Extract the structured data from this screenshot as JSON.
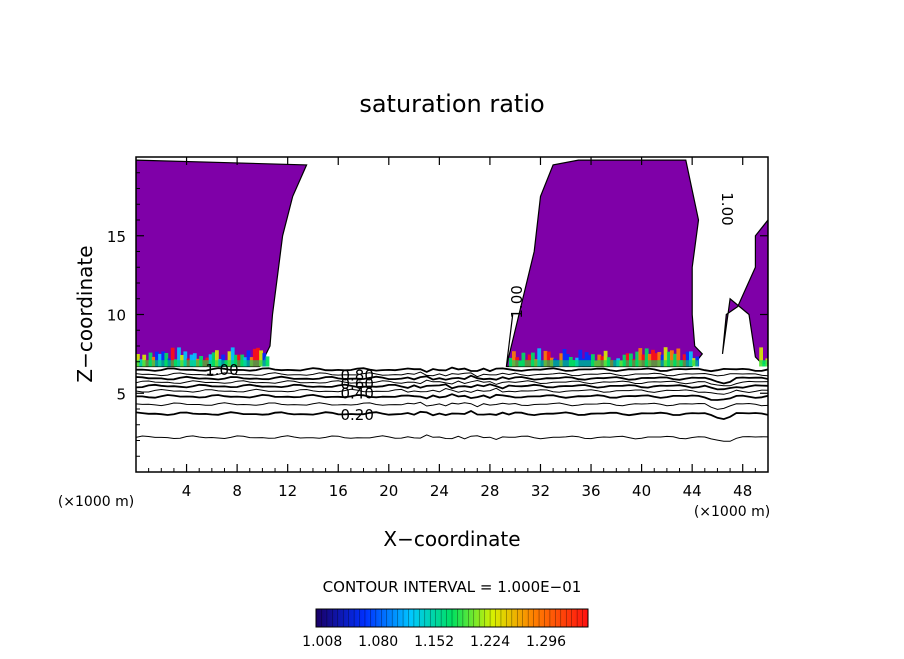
{
  "chart_data": {
    "type": "contour",
    "title": "saturation ratio",
    "xlabel": "X−coordinate",
    "ylabel": "Z−coordinate",
    "x_unit": "(×1000 m)",
    "y_unit": "(×1000 m)",
    "xlim": [
      0,
      50
    ],
    "ylim": [
      0,
      20
    ],
    "x_ticks": [
      4,
      8,
      12,
      16,
      20,
      24,
      28,
      32,
      36,
      40,
      44,
      48
    ],
    "y_ticks": [
      5,
      10,
      15
    ],
    "contour_interval_label": "CONTOUR INTERVAL = 1.000E−01",
    "colorbar_ticks": [
      "1.008",
      "1.080",
      "1.152",
      "1.224",
      "1.296"
    ],
    "colorbar_range": [
      1.0,
      1.35
    ],
    "saturated_fill_color": "#7f00a8",
    "contour_lines": [
      {
        "level": 0.1,
        "z": 2.2,
        "label": ""
      },
      {
        "level": 0.2,
        "z": 3.7,
        "label": "0.20"
      },
      {
        "level": 0.3,
        "z": 4.3,
        "label": ""
      },
      {
        "level": 0.4,
        "z": 4.8,
        "label": "0.40"
      },
      {
        "level": 0.5,
        "z": 5.15,
        "label": ""
      },
      {
        "level": 0.6,
        "z": 5.45,
        "label": "0.60"
      },
      {
        "level": 0.7,
        "z": 5.7,
        "label": ""
      },
      {
        "level": 0.8,
        "z": 5.95,
        "label": "0.80"
      },
      {
        "level": 0.9,
        "z": 6.2,
        "label": ""
      },
      {
        "level": 1.0,
        "z": 6.5,
        "label": "1.00"
      }
    ],
    "saturated_regions": [
      {
        "x": [
          0,
          0,
          13.5,
          12.4,
          11.6,
          11.2,
          10.8,
          10.6,
          9.8,
          0
        ],
        "z": [
          6.7,
          19.8,
          19.5,
          17.5,
          15.0,
          12.5,
          10.0,
          8.0,
          6.7,
          6.7
        ]
      },
      {
        "x": [
          29.3,
          31.5,
          32.0,
          33.0,
          35.0,
          43.5,
          44.5,
          44.0,
          44.0,
          44.2,
          44.8,
          44.0,
          29.3,
          29.8,
          29.3
        ],
        "z": [
          6.7,
          14.0,
          17.5,
          19.5,
          19.8,
          19.8,
          16.0,
          13.0,
          10.0,
          8.0,
          7.5,
          6.7,
          6.7,
          10.0,
          6.7
        ]
      },
      {
        "x": [
          46.4,
          46.7,
          47.6,
          49.0,
          49.0,
          50.0,
          50.0,
          49.5,
          49.0,
          48.5,
          47.0,
          46.4
        ],
        "z": [
          7.5,
          10.0,
          10.5,
          13.0,
          15.0,
          16.0,
          6.9,
          6.9,
          7.3,
          10.0,
          11.0,
          7.5
        ]
      }
    ],
    "line_labels": [
      {
        "text": "1.00",
        "x": 6.8,
        "z": 6.45,
        "rotate": 0
      },
      {
        "text": "0.80",
        "x": 17.5,
        "z": 6.1,
        "rotate": 0
      },
      {
        "text": "0.60",
        "x": 17.5,
        "z": 5.55,
        "rotate": 0
      },
      {
        "text": "0.40",
        "x": 17.5,
        "z": 4.95,
        "rotate": 0
      },
      {
        "text": "0.20",
        "x": 17.5,
        "z": 3.6,
        "rotate": 0
      },
      {
        "text": "1.00",
        "x": 30.2,
        "z": 10.8,
        "rotate": -90
      },
      {
        "text": "1.00",
        "x": 46.7,
        "z": 16.7,
        "rotate": 90
      }
    ]
  }
}
